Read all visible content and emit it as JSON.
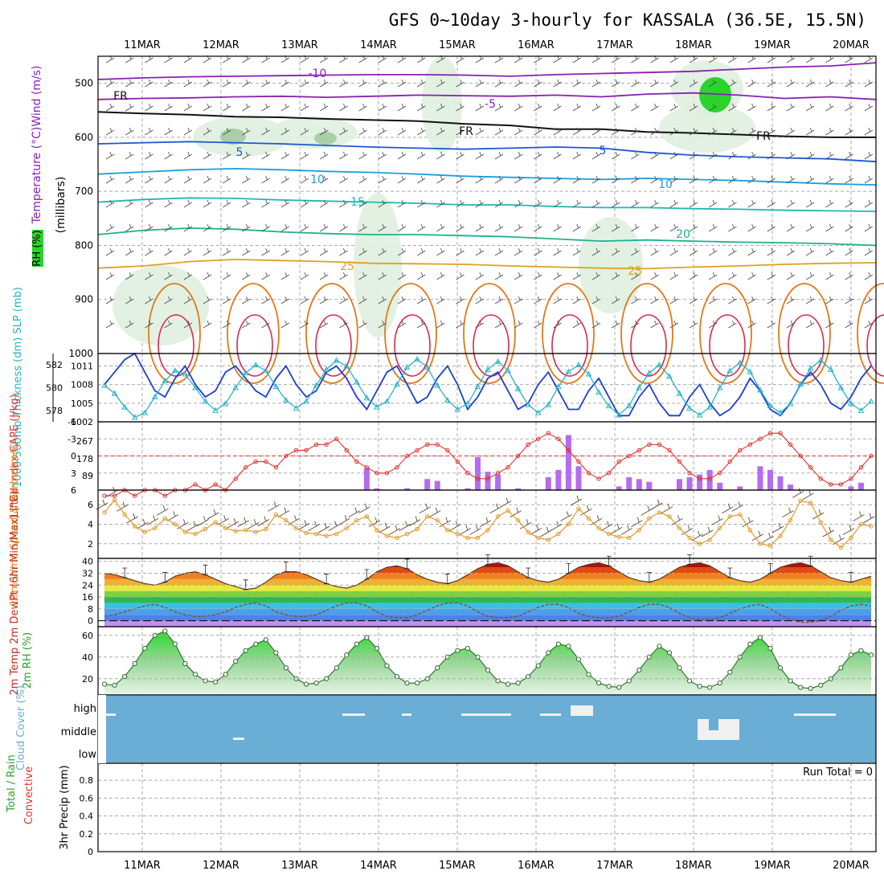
{
  "header": {
    "title": "GFS 0~10day 3-hourly for KASSALA (36.5E, 15.5N)"
  },
  "colors": {
    "frame": "#000000",
    "grid": "#aaaaaa",
    "rh_green": "#2bd42b",
    "slp": "#1e3fd0",
    "thickness": "#2ab3c8",
    "lifted": "#e23232",
    "cape": "#b46cf0",
    "wind": "#e39a2a",
    "barb": "#5a4a30",
    "rh2m": "#2aa02a",
    "cloud": "#6aaed6",
    "dewpt": "#7a5a40"
  },
  "chart_data": {
    "type": "meteogram",
    "x_dates": [
      "11MAR",
      "12MAR",
      "13MAR",
      "14MAR",
      "15MAR",
      "16MAR",
      "17MAR",
      "18MAR",
      "19MAR",
      "20MAR"
    ],
    "panels": {
      "upper_air": {
        "ylabel_left": "RH (%)",
        "ylabel_mid": "Temperature (°C)Wind (m/s)",
        "ylabel_units": "(millibars)",
        "yticks": [
          "500",
          "600",
          "700",
          "800",
          "900",
          "1000"
        ],
        "ylim": [
          450,
          1000
        ],
        "isotherm_labels": [
          "-10",
          "-5",
          "FR",
          "FR",
          "FR",
          "5",
          "5",
          "10",
          "10",
          "15",
          "20",
          "25",
          "25"
        ],
        "isotherms": [
          {
            "label": "-10",
            "pressure": [
              493,
              490,
              488,
              487,
              486,
              485,
              484,
              484,
              485,
              487,
              484,
              482,
              480,
              478,
              474,
              470,
              468,
              462
            ]
          },
          {
            "label": "-5",
            "pressure": [
              530,
              528,
              527,
              525,
              524,
              526,
              524,
              522,
              523,
              524,
              522,
              525,
              520,
              518,
              522,
              528,
              525,
              530
            ]
          },
          {
            "label": "FR",
            "pressure": [
              553,
              556,
              558,
              562,
              563,
              566,
              568,
              570,
              575,
              578,
              585,
              585,
              590,
              592,
              595,
              598,
              600,
              600
            ]
          },
          {
            "label": "5",
            "pressure": [
              612,
              610,
              608,
              610,
              612,
              615,
              618,
              620,
              622,
              620,
              618,
              620,
              628,
              633,
              636,
              638,
              640,
              645
            ]
          },
          {
            "label": "10",
            "pressure": [
              668,
              664,
              660,
              658,
              660,
              663,
              665,
              668,
              672,
              674,
              676,
              678,
              676,
              678,
              680,
              683,
              686,
              688
            ]
          },
          {
            "label": "15",
            "pressure": [
              720,
              715,
              712,
              713,
              716,
              718,
              720,
              722,
              725,
              725,
              728,
              730,
              730,
              732,
              733,
              735,
              736,
              737
            ]
          },
          {
            "label": "20",
            "pressure": [
              780,
              772,
              768,
              770,
              775,
              778,
              780,
              780,
              782,
              784,
              788,
              792,
              790,
              792,
              794,
              795,
              797,
              800
            ]
          },
          {
            "label": "25",
            "pressure": [
              842,
              838,
              830,
              826,
              828,
              830,
              833,
              834,
              835,
              838,
              840,
              842,
              843,
              840,
              838,
              835,
              833,
              832
            ]
          }
        ]
      },
      "slp_thickness": {
        "ylabel": "1000-500mb Thickness (dm) SLP (mb)",
        "thickness_ticks": [
          "582",
          "580",
          "578"
        ],
        "slp_ticks": [
          "1011",
          "1008",
          "1005",
          "1002"
        ],
        "ylim_slp": [
          1002,
          1013
        ],
        "slp": [
          1008,
          1010,
          1012,
          1013,
          1010,
          1007,
          1006,
          1009,
          1011,
          1008,
          1006,
          1007,
          1010,
          1011,
          1009,
          1007,
          1006,
          1009,
          1011,
          1008,
          1006,
          1007,
          1010,
          1011,
          1009,
          1006,
          1004,
          1007,
          1010,
          1011,
          1008,
          1005,
          1006,
          1009,
          1011,
          1008,
          1004,
          1006,
          1009,
          1010,
          1007,
          1004,
          1005,
          1008,
          1010,
          1007,
          1004,
          1004,
          1007,
          1009,
          1006,
          1003,
          1003,
          1006,
          1008,
          1005,
          1003,
          1003,
          1006,
          1008,
          1005,
          1003,
          1004,
          1006,
          1009,
          1007,
          1004,
          1003,
          1005,
          1008,
          1010,
          1008,
          1005,
          1004,
          1006,
          1009,
          1011
        ],
        "thickness": [
          580.2,
          579.5,
          578.3,
          577.4,
          577.8,
          579.2,
          580.6,
          581.5,
          581.2,
          580.0,
          578.8,
          578.0,
          578.6,
          580.0,
          581.3,
          582.0,
          581.5,
          580.1,
          578.9,
          578.2,
          578.8,
          580.2,
          581.6,
          582.4,
          581.9,
          580.5,
          579.1,
          578.3,
          578.8,
          580.3,
          581.8,
          582.5,
          581.8,
          580.2,
          578.9,
          578.1,
          578.6,
          580.1,
          581.6,
          582.3,
          581.5,
          579.9,
          578.5,
          577.8,
          578.5,
          580.1,
          581.4,
          582.0,
          581.2,
          579.6,
          578.4,
          577.6,
          578.4,
          580.0,
          581.3,
          582.0,
          581.0,
          579.5,
          578.2,
          577.6,
          578.3,
          580.0,
          581.5,
          582.2,
          581.4,
          579.8,
          578.4,
          577.8,
          578.6,
          580.3,
          581.7,
          582.4,
          581.6,
          580.0,
          578.6,
          578.0,
          578.8
        ]
      },
      "lifted_cape": {
        "ylabel": "Lifted Index CAPE (J/kg)",
        "li_ticks": [
          "-6",
          "-3",
          "0",
          "3",
          "6"
        ],
        "cape_ticks": [
          "267",
          "178",
          "89"
        ],
        "lifted_index": [
          7,
          7,
          6,
          7,
          6,
          6,
          7,
          6,
          6,
          5,
          6,
          5,
          6,
          4,
          2,
          1,
          1,
          2,
          0,
          -1,
          -1,
          -2,
          -2,
          -3,
          -1,
          1,
          2,
          3,
          3,
          2,
          0,
          -1,
          -2,
          -2,
          -1,
          1,
          3,
          4,
          4,
          3,
          2,
          0,
          -2,
          -3,
          -4,
          -3,
          -1,
          1,
          3,
          4,
          3,
          1,
          0,
          -1,
          -2,
          -2,
          -1,
          1,
          3,
          4,
          4,
          3,
          1,
          -1,
          -2,
          -3,
          -4,
          -4,
          -2,
          0,
          2,
          4,
          5,
          5,
          4,
          2,
          0
        ],
        "cape": [
          0,
          0,
          0,
          0,
          0,
          0,
          0,
          0,
          0,
          0,
          0,
          0,
          0,
          0,
          0,
          0,
          0,
          0,
          0,
          0,
          0,
          0,
          0,
          0,
          0,
          0,
          0,
          0,
          0,
          0,
          0,
          0,
          0,
          0,
          0,
          0,
          0,
          0,
          0,
          0,
          0,
          0,
          0,
          0,
          0,
          0,
          0,
          0,
          0,
          0,
          0,
          0,
          0,
          0,
          0,
          0,
          0,
          0,
          0,
          0,
          0,
          0,
          0,
          0,
          0,
          0,
          0,
          0,
          0,
          0,
          0,
          0,
          0,
          0,
          0,
          0,
          0
        ]
      },
      "wind10m": {
        "ylabel": "10m Wind Speed & Barbs (m/s)",
        "yticks": [
          "6",
          "4",
          "2"
        ],
        "ylim": [
          0.5,
          7.5
        ],
        "speed": [
          5.2,
          6.5,
          5.0,
          3.8,
          3.2,
          3.6,
          4.6,
          4.0,
          3.2,
          3.0,
          3.5,
          4.2,
          3.6,
          3.3,
          3.4,
          3.2,
          3.5,
          5.0,
          4.4,
          3.6,
          3.1,
          3.0,
          2.8,
          3.0,
          3.6,
          4.4,
          4.8,
          3.4,
          2.8,
          2.6,
          3.0,
          3.5,
          4.8,
          4.4,
          3.4,
          3.0,
          2.6,
          2.6,
          3.4,
          4.8,
          5.4,
          4.4,
          3.2,
          2.6,
          2.4,
          3.0,
          4.0,
          5.6,
          4.6,
          3.6,
          3.0,
          2.7,
          2.6,
          3.4,
          4.6,
          5.2,
          4.8,
          3.6,
          2.6,
          2.0,
          2.4,
          3.6,
          4.8,
          5.0,
          3.4,
          2.0,
          1.8,
          2.8,
          4.4,
          6.4,
          6.2,
          4.2,
          2.4,
          1.6,
          2.6,
          4.0,
          3.8
        ]
      },
      "temp2m": {
        "ylabel": "2m Temp 2m DewPt (6hr Min/Max) (°C)",
        "yticks": [
          "40",
          "32",
          "24",
          "16",
          "8",
          "0"
        ],
        "ylim": [
          -4,
          42
        ],
        "temp": [
          32,
          31,
          29,
          27,
          25,
          24,
          26,
          30,
          32,
          33,
          31,
          28,
          25,
          23,
          21,
          22,
          26,
          31,
          33,
          33,
          31,
          28,
          25,
          23,
          22,
          24,
          28,
          33,
          36,
          37,
          35,
          31,
          28,
          26,
          25,
          27,
          31,
          35,
          38,
          39,
          37,
          33,
          29,
          27,
          26,
          28,
          32,
          36,
          38,
          39,
          37,
          33,
          29,
          27,
          26,
          28,
          32,
          36,
          38,
          39,
          37,
          33,
          29,
          27,
          26,
          28,
          32,
          36,
          38,
          39,
          37,
          33,
          29,
          27,
          26,
          28,
          30
        ],
        "dewpt": [
          3,
          4,
          6,
          8,
          10,
          11,
          9,
          6,
          4,
          3,
          3,
          4,
          6,
          9,
          11,
          12,
          10,
          6,
          4,
          3,
          3,
          4,
          7,
          10,
          12,
          12,
          10,
          6,
          3,
          2,
          2,
          4,
          7,
          10,
          12,
          12,
          10,
          6,
          3,
          2,
          2,
          3,
          6,
          9,
          11,
          11,
          9,
          5,
          3,
          2,
          2,
          3,
          6,
          9,
          11,
          11,
          9,
          5,
          2,
          1,
          1,
          2,
          5,
          8,
          10,
          11,
          8,
          4,
          1,
          -1,
          -1,
          0,
          3,
          7,
          10,
          11,
          10
        ]
      },
      "rh2m": {
        "ylabel": "2m RH (%)",
        "yticks": [
          "60",
          "40",
          "20"
        ],
        "ylim": [
          5,
          68
        ],
        "rh": [
          15,
          14,
          22,
          34,
          48,
          60,
          64,
          52,
          34,
          24,
          18,
          17,
          24,
          36,
          46,
          52,
          56,
          44,
          30,
          20,
          15,
          16,
          20,
          30,
          42,
          52,
          58,
          48,
          32,
          22,
          16,
          16,
          20,
          30,
          40,
          46,
          48,
          40,
          28,
          18,
          15,
          16,
          22,
          32,
          44,
          52,
          50,
          38,
          24,
          16,
          13,
          12,
          18,
          28,
          40,
          50,
          44,
          30,
          18,
          13,
          12,
          16,
          26,
          40,
          52,
          58,
          48,
          30,
          18,
          12,
          11,
          14,
          20,
          30,
          42,
          46,
          42
        ]
      },
      "cloud": {
        "ylabel": "Cloud Cover (%)",
        "levels": [
          "high",
          "middle",
          "low"
        ]
      },
      "precip": {
        "ylabel": "3hr Precip (mm)",
        "ylabel_a": "Total / Rain",
        "ylabel_b": "Convective",
        "yticks": [
          "0.8",
          "0.6",
          "0.4",
          "0.2",
          "0"
        ],
        "ylim": [
          0,
          1
        ],
        "run_total": "Run Total = 0"
      }
    }
  }
}
